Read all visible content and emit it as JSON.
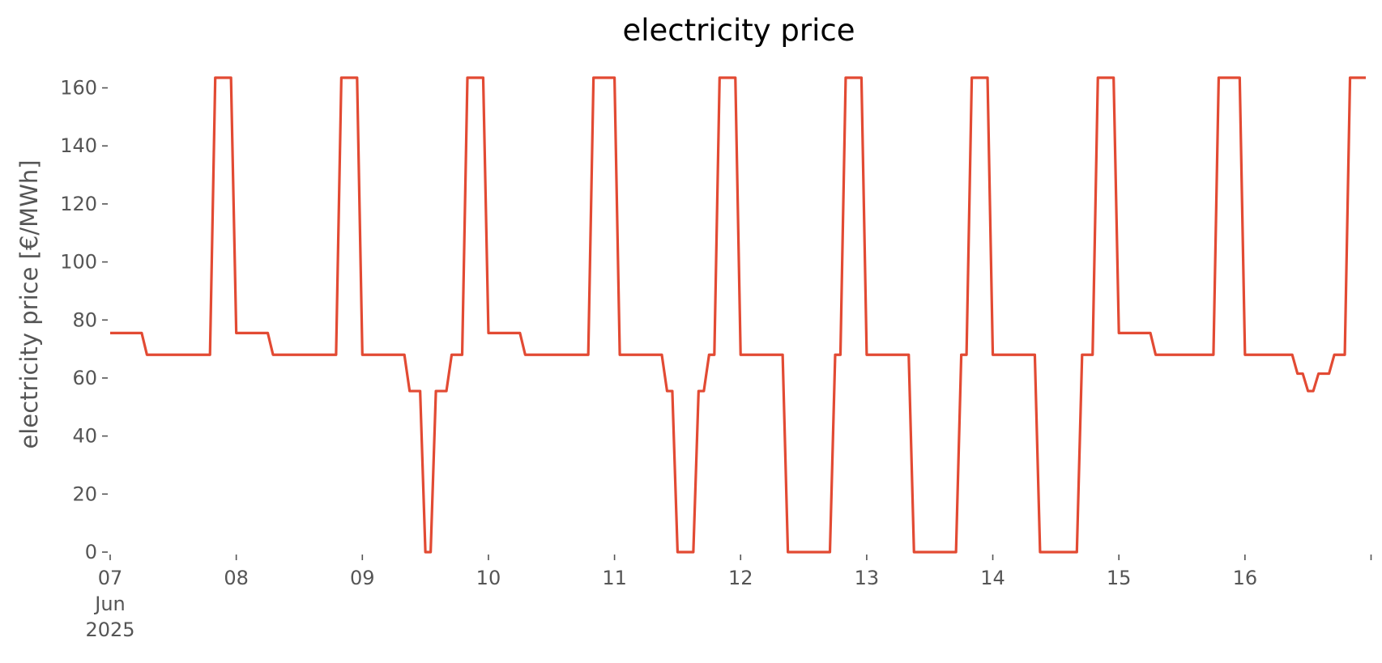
{
  "chart_data": {
    "type": "line",
    "title": "electricity price",
    "xlabel": "",
    "ylabel": "electricity price [€/MWh]",
    "ylim": [
      0,
      163.5
    ],
    "xlim": [
      "2025-06-07 00:00",
      "2025-06-16 23:00"
    ],
    "grid": false,
    "legend": "none",
    "line_color": "#e24a33",
    "x_ticks": [
      {
        "date": "2025-06-07",
        "lines": [
          "07",
          "Jun",
          "2025"
        ]
      },
      {
        "date": "2025-06-08",
        "lines": [
          "08"
        ]
      },
      {
        "date": "2025-06-09",
        "lines": [
          "09"
        ]
      },
      {
        "date": "2025-06-10",
        "lines": [
          "10"
        ]
      },
      {
        "date": "2025-06-11",
        "lines": [
          "11"
        ]
      },
      {
        "date": "2025-06-12",
        "lines": [
          "12"
        ]
      },
      {
        "date": "2025-06-13",
        "lines": [
          "13"
        ]
      },
      {
        "date": "2025-06-14",
        "lines": [
          "14"
        ]
      },
      {
        "date": "2025-06-15",
        "lines": [
          "15"
        ]
      },
      {
        "date": "2025-06-16",
        "lines": [
          "16"
        ]
      },
      {
        "date": "2025-06-17",
        "lines": [
          ""
        ]
      }
    ],
    "y_ticks": [
      "0",
      "20",
      "40",
      "60",
      "80",
      "100",
      "120",
      "140",
      "160"
    ],
    "series": [
      {
        "points": [
          [
            "2025-06-07 00:00",
            75.5
          ],
          [
            "2025-06-07 06:00",
            75.5
          ],
          [
            "2025-06-07 07:00",
            68
          ],
          [
            "2025-06-07 19:00",
            68
          ],
          [
            "2025-06-07 20:00",
            163.5
          ],
          [
            "2025-06-07 23:00",
            163.5
          ],
          [
            "2025-06-08 00:00",
            75.5
          ],
          [
            "2025-06-08 06:00",
            75.5
          ],
          [
            "2025-06-08 07:00",
            68
          ],
          [
            "2025-06-08 19:00",
            68
          ],
          [
            "2025-06-08 20:00",
            163.5
          ],
          [
            "2025-06-08 23:00",
            163.5
          ],
          [
            "2025-06-09 00:00",
            68
          ],
          [
            "2025-06-09 08:00",
            68
          ],
          [
            "2025-06-09 09:00",
            55.5
          ],
          [
            "2025-06-09 11:00",
            55.5
          ],
          [
            "2025-06-09 12:00",
            0
          ],
          [
            "2025-06-09 13:00",
            0
          ],
          [
            "2025-06-09 14:00",
            55.5
          ],
          [
            "2025-06-09 16:00",
            55.5
          ],
          [
            "2025-06-09 17:00",
            68
          ],
          [
            "2025-06-09 19:00",
            68
          ],
          [
            "2025-06-09 20:00",
            163.5
          ],
          [
            "2025-06-09 23:00",
            163.5
          ],
          [
            "2025-06-10 00:00",
            75.5
          ],
          [
            "2025-06-10 06:00",
            75.5
          ],
          [
            "2025-06-10 07:00",
            68
          ],
          [
            "2025-06-10 19:00",
            68
          ],
          [
            "2025-06-10 20:00",
            163.5
          ],
          [
            "2025-06-10 24:00",
            163.5
          ],
          [
            "2025-06-11 01:00",
            68
          ],
          [
            "2025-06-11 09:00",
            68
          ],
          [
            "2025-06-11 10:00",
            55.5
          ],
          [
            "2025-06-11 11:00",
            55.5
          ],
          [
            "2025-06-11 12:00",
            0
          ],
          [
            "2025-06-11 15:00",
            0
          ],
          [
            "2025-06-11 16:00",
            55.5
          ],
          [
            "2025-06-11 17:00",
            55.5
          ],
          [
            "2025-06-11 18:00",
            68
          ],
          [
            "2025-06-11 19:00",
            68
          ],
          [
            "2025-06-11 20:00",
            163.5
          ],
          [
            "2025-06-11 23:00",
            163.5
          ],
          [
            "2025-06-12 00:00",
            68
          ],
          [
            "2025-06-12 08:00",
            68
          ],
          [
            "2025-06-12 09:00",
            0
          ],
          [
            "2025-06-12 17:00",
            0
          ],
          [
            "2025-06-12 18:00",
            68
          ],
          [
            "2025-06-12 19:00",
            68
          ],
          [
            "2025-06-12 20:00",
            163.5
          ],
          [
            "2025-06-12 23:00",
            163.5
          ],
          [
            "2025-06-13 00:00",
            68
          ],
          [
            "2025-06-13 08:00",
            68
          ],
          [
            "2025-06-13 09:00",
            0
          ],
          [
            "2025-06-13 17:00",
            0
          ],
          [
            "2025-06-13 18:00",
            68
          ],
          [
            "2025-06-13 19:00",
            68
          ],
          [
            "2025-06-13 20:00",
            163.5
          ],
          [
            "2025-06-13 23:00",
            163.5
          ],
          [
            "2025-06-14 00:00",
            68
          ],
          [
            "2025-06-14 08:00",
            68
          ],
          [
            "2025-06-14 09:00",
            0
          ],
          [
            "2025-06-14 16:00",
            0
          ],
          [
            "2025-06-14 17:00",
            68
          ],
          [
            "2025-06-14 19:00",
            68
          ],
          [
            "2025-06-14 20:00",
            163.5
          ],
          [
            "2025-06-14 23:00",
            163.5
          ],
          [
            "2025-06-15 00:00",
            75.5
          ],
          [
            "2025-06-15 06:00",
            75.5
          ],
          [
            "2025-06-15 07:00",
            68
          ],
          [
            "2025-06-15 18:00",
            68
          ],
          [
            "2025-06-15 19:00",
            163.5
          ],
          [
            "2025-06-15 23:00",
            163.5
          ],
          [
            "2025-06-16 00:00",
            68
          ],
          [
            "2025-06-16 09:00",
            68
          ],
          [
            "2025-06-16 10:00",
            61.5
          ],
          [
            "2025-06-16 11:00",
            61.5
          ],
          [
            "2025-06-16 12:00",
            55.5
          ],
          [
            "2025-06-16 13:00",
            55.5
          ],
          [
            "2025-06-16 14:00",
            61.5
          ],
          [
            "2025-06-16 16:00",
            61.5
          ],
          [
            "2025-06-16 17:00",
            68
          ],
          [
            "2025-06-16 19:00",
            68
          ],
          [
            "2025-06-16 20:00",
            163.5
          ],
          [
            "2025-06-16 23:00",
            163.5
          ]
        ]
      }
    ]
  }
}
